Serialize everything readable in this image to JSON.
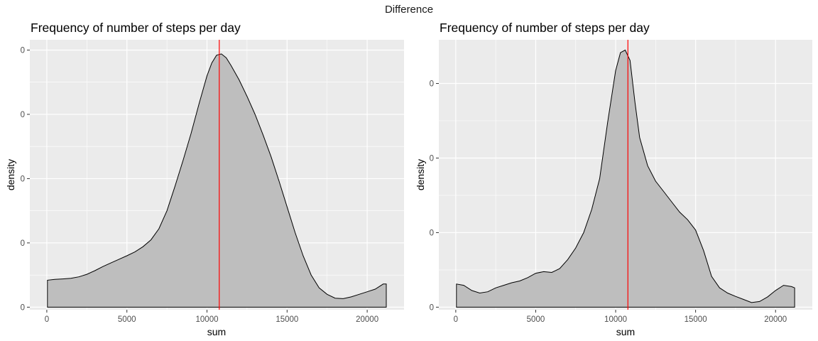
{
  "figure": {
    "title": "Difference",
    "background": "#ffffff"
  },
  "style": {
    "panel_background": "#ebebeb",
    "grid_color": "#ffffff",
    "fill_color": "#bebebe",
    "line_color": "#000000",
    "vline_color": "#ff0000"
  },
  "chart_data": [
    {
      "type": "area",
      "subtype": "density",
      "title": "Frequency of number of steps per day",
      "xlabel": "sum",
      "ylabel": "density",
      "xlim": [
        -1060,
        22300
      ],
      "ylim": [
        -0.01,
        1.04
      ],
      "x_ticks": [
        0,
        5000,
        10000,
        15000,
        20000
      ],
      "x_tick_labels": [
        "0",
        "5000",
        "10000",
        "15000",
        "20000"
      ],
      "y_ticks": [
        0,
        0.25,
        0.5,
        0.75,
        1.0
      ],
      "y_tick_labels": [
        "0",
        "0",
        "0",
        "0",
        "0"
      ],
      "vline": {
        "x": 10766
      },
      "grid": true,
      "legend": "none",
      "series": [
        {
          "x": [
            41,
            500,
            1000,
            1500,
            2000,
            2500,
            3000,
            3500,
            4000,
            4500,
            5000,
            5500,
            6000,
            6500,
            7000,
            7500,
            8000,
            8500,
            9000,
            9500,
            10000,
            10300,
            10600,
            10900,
            11200,
            11500,
            12000,
            12500,
            13000,
            13500,
            14000,
            14500,
            15000,
            15500,
            16000,
            16500,
            17000,
            17500,
            18000,
            18500,
            19000,
            19500,
            20000,
            20500,
            21000,
            21194
          ],
          "y": [
            0.105,
            0.108,
            0.11,
            0.112,
            0.118,
            0.128,
            0.142,
            0.158,
            0.172,
            0.186,
            0.2,
            0.215,
            0.235,
            0.262,
            0.305,
            0.375,
            0.47,
            0.57,
            0.675,
            0.79,
            0.9,
            0.95,
            0.98,
            0.985,
            0.97,
            0.94,
            0.885,
            0.82,
            0.75,
            0.67,
            0.585,
            0.49,
            0.39,
            0.29,
            0.2,
            0.125,
            0.075,
            0.05,
            0.035,
            0.033,
            0.04,
            0.05,
            0.06,
            0.07,
            0.09,
            0.09
          ]
        }
      ]
    },
    {
      "type": "area",
      "subtype": "density",
      "title": "Frequency of number of steps per day",
      "xlabel": "sum",
      "ylabel": "density",
      "xlim": [
        -1060,
        22300
      ],
      "ylim": [
        -0.01,
        1.04
      ],
      "x_ticks": [
        0,
        5000,
        10000,
        15000,
        20000
      ],
      "x_tick_labels": [
        "0",
        "5000",
        "10000",
        "15000",
        "20000"
      ],
      "y_ticks": [
        0,
        0.29,
        0.58,
        0.87
      ],
      "y_tick_labels": [
        "0",
        "0",
        "0",
        "0"
      ],
      "vline": {
        "x": 10766
      },
      "grid": true,
      "legend": "none",
      "series": [
        {
          "x": [
            41,
            500,
            1000,
            1500,
            2000,
            2500,
            3000,
            3500,
            4000,
            4500,
            5000,
            5500,
            6000,
            6500,
            7000,
            7500,
            8000,
            8500,
            9000,
            9500,
            10000,
            10300,
            10600,
            10900,
            11200,
            11500,
            12000,
            12500,
            13000,
            13500,
            14000,
            14500,
            15000,
            15500,
            16000,
            16500,
            17000,
            17500,
            18000,
            18500,
            19000,
            19500,
            20000,
            20500,
            21000,
            21194
          ],
          "y": [
            0.09,
            0.085,
            0.065,
            0.055,
            0.06,
            0.075,
            0.085,
            0.095,
            0.102,
            0.115,
            0.132,
            0.138,
            0.135,
            0.15,
            0.185,
            0.23,
            0.29,
            0.38,
            0.5,
            0.72,
            0.92,
            0.99,
            1.0,
            0.96,
            0.8,
            0.66,
            0.55,
            0.49,
            0.45,
            0.41,
            0.37,
            0.34,
            0.3,
            0.22,
            0.12,
            0.075,
            0.055,
            0.042,
            0.03,
            0.018,
            0.022,
            0.04,
            0.065,
            0.085,
            0.08,
            0.075
          ]
        }
      ]
    }
  ]
}
